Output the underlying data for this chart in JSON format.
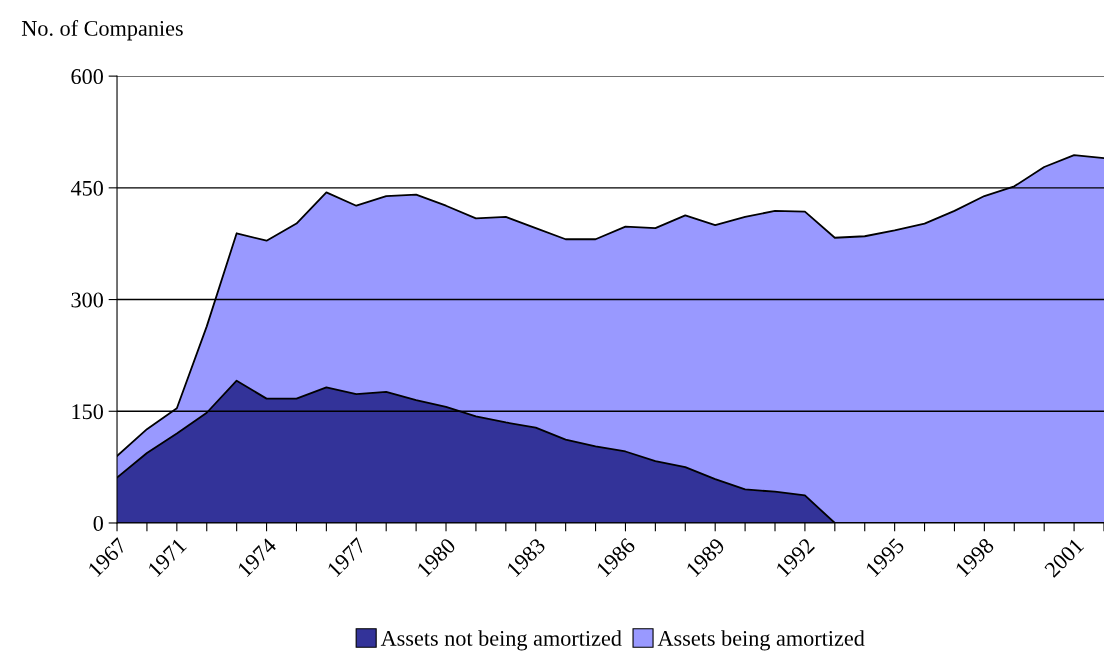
{
  "chart_data": {
    "type": "area",
    "stacked": true,
    "ylabel": "No. of Companies",
    "categories": [
      "1967",
      null,
      "1971",
      null,
      null,
      "1974",
      null,
      null,
      "1977",
      null,
      null,
      "1980",
      null,
      null,
      "1983",
      null,
      null,
      "1986",
      null,
      null,
      "1989",
      null,
      null,
      "1992",
      null,
      null,
      "1995",
      null,
      null,
      "1998",
      null,
      null,
      "2001",
      null
    ],
    "series": [
      {
        "name": "Assets not being amortized",
        "color": "#333399",
        "values": [
          61,
          94,
          120,
          148,
          191,
          167,
          167,
          182,
          173,
          176,
          165,
          156,
          143,
          135,
          128,
          112,
          103,
          96,
          83,
          75,
          59,
          45,
          42,
          37,
          0,
          0,
          0,
          0,
          0,
          0,
          0,
          0,
          0,
          0
        ]
      },
      {
        "name": "Assets being amortized",
        "color": "#9999ff",
        "values": [
          29,
          32,
          34,
          116,
          198,
          212,
          235,
          262,
          253,
          263,
          276,
          270,
          266,
          276,
          268,
          269,
          278,
          302,
          313,
          338,
          341,
          366,
          377,
          381,
          383,
          385,
          393,
          402,
          419,
          439,
          452,
          478,
          494,
          490
        ]
      }
    ],
    "ylim": [
      0,
      600
    ],
    "yticks": [
      0,
      150,
      300,
      450,
      600
    ],
    "grid": "y",
    "legend": "bottom"
  }
}
